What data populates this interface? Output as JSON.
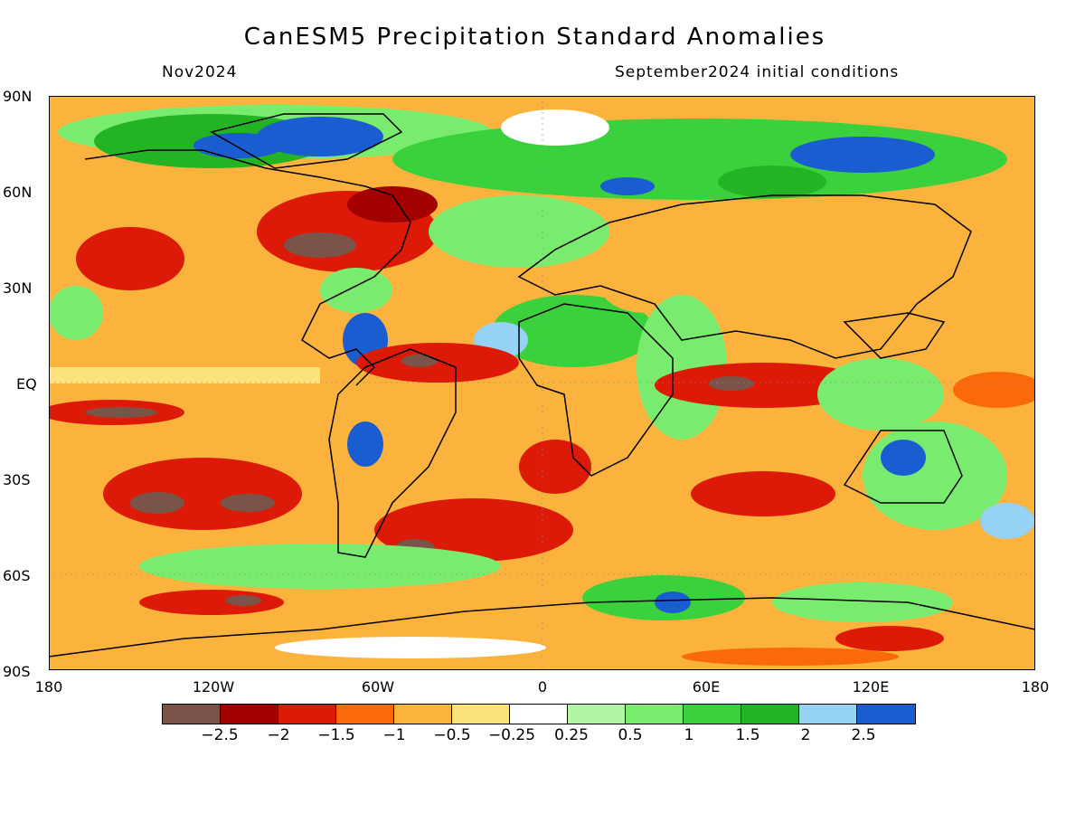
{
  "title": "CanESM5 Precipitation Standard Anomalies",
  "subtitle_left": "Nov2024",
  "subtitle_right": "September2024 initial conditions",
  "lat_labels": [
    "90N",
    "60N",
    "30N",
    "EQ",
    "30S",
    "60S",
    "90S"
  ],
  "lon_labels": [
    "180",
    "120W",
    "60W",
    "0",
    "60E",
    "120E",
    "180"
  ],
  "colorbar": {
    "colors": [
      "#7a5448",
      "#a30000",
      "#dc1a07",
      "#fa6a0a",
      "#fbb33d",
      "#fce27a",
      "#ffffff",
      "#b2f5a5",
      "#79ec6f",
      "#3ad13c",
      "#24b325",
      "#95d2f6",
      "#1a5dd0"
    ],
    "labels": [
      "-2.5",
      "-2",
      "-1.5",
      "-1",
      "-0.5",
      "-0.25",
      "0.25",
      "0.5",
      "1",
      "1.5",
      "2",
      "2.5"
    ]
  }
}
